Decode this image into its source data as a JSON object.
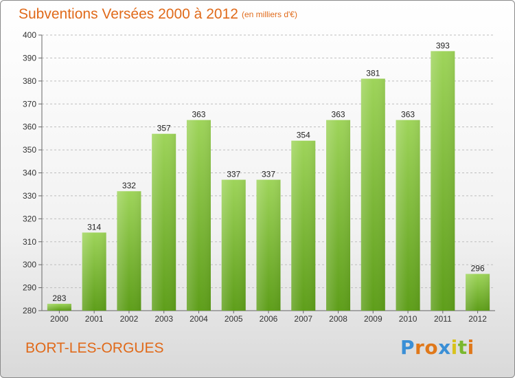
{
  "header": {
    "title": "Subventions Versées 2000 à 2012",
    "unit": "(en milliers d'€)"
  },
  "footer": {
    "commune": "BORT-LES-ORGUES",
    "logo_text": "Proxiti",
    "logo_colors": [
      "#3a8fd6",
      "#e0781a",
      "#e0781a",
      "#3a8fd6",
      "#d8c21c",
      "#7ab82e",
      "#e0781a"
    ]
  },
  "colors": {
    "bar_top": "#9ed45a",
    "bar_bottom": "#5e9e1a",
    "grid": "#bdbdbd",
    "title": "#e06a1a"
  },
  "chart_data": {
    "type": "bar",
    "title": "Subventions Versées 2000 à 2012",
    "subtitle": "(en milliers d'€)",
    "categories": [
      "2000",
      "2001",
      "2002",
      "2003",
      "2004",
      "2005",
      "2006",
      "2007",
      "2008",
      "2009",
      "2010",
      "2011",
      "2012"
    ],
    "values": [
      283,
      314,
      332,
      357,
      363,
      337,
      337,
      354,
      363,
      381,
      363,
      393,
      296
    ],
    "ylim": [
      280,
      400
    ],
    "yticks": [
      280,
      290,
      300,
      310,
      320,
      330,
      340,
      350,
      360,
      370,
      380,
      390,
      400
    ],
    "grid": true,
    "data_labels": true
  }
}
